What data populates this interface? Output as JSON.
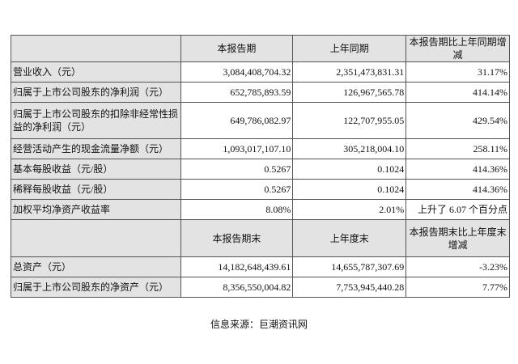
{
  "header1": [
    "",
    "本报告期",
    "上年同期",
    "本报告期比上年同期增减"
  ],
  "rows1": [
    {
      "label": "营业收入（元）",
      "current": "3,084,408,704.32",
      "prior": "2,351,473,831.31",
      "change": "31.17%"
    },
    {
      "label": "归属于上市公司股东的净利润（元）",
      "current": "652,785,893.59",
      "prior": "126,967,565.78",
      "change": "414.14%"
    },
    {
      "label": "归属于上市公司股东的扣除非经常性损益的净利润（元）",
      "current": "649,786,082.97",
      "prior": "122,707,955.05",
      "change": "429.54%"
    },
    {
      "label": "经营活动产生的现金流量净额（元）",
      "current": "1,093,017,107.10",
      "prior": "305,218,004.10",
      "change": "258.11%"
    },
    {
      "label": "基本每股收益（元/股）",
      "current": "0.5267",
      "prior": "0.1024",
      "change": "414.36%"
    },
    {
      "label": "稀释每股收益（元/股）",
      "current": "0.5267",
      "prior": "0.1024",
      "change": "414.36%"
    },
    {
      "label": "加权平均净资产收益率",
      "current": "8.08%",
      "prior": "2.01%",
      "change": "上升了 6.07 个百分点"
    }
  ],
  "header2": [
    "",
    "本报告期末",
    "上年度末",
    "本报告期末比上年度末增减"
  ],
  "rows2": [
    {
      "label": "总资产（元）",
      "current": "14,182,648,439.61",
      "prior": "14,655,787,307.69",
      "change": "-3.23%"
    },
    {
      "label": "归属于上市公司股东的净资产（元）",
      "current": "8,356,550,004.82",
      "prior": "7,753,945,440.28",
      "change": "7.77%"
    }
  ],
  "source": "信息来源：巨潮资讯网"
}
